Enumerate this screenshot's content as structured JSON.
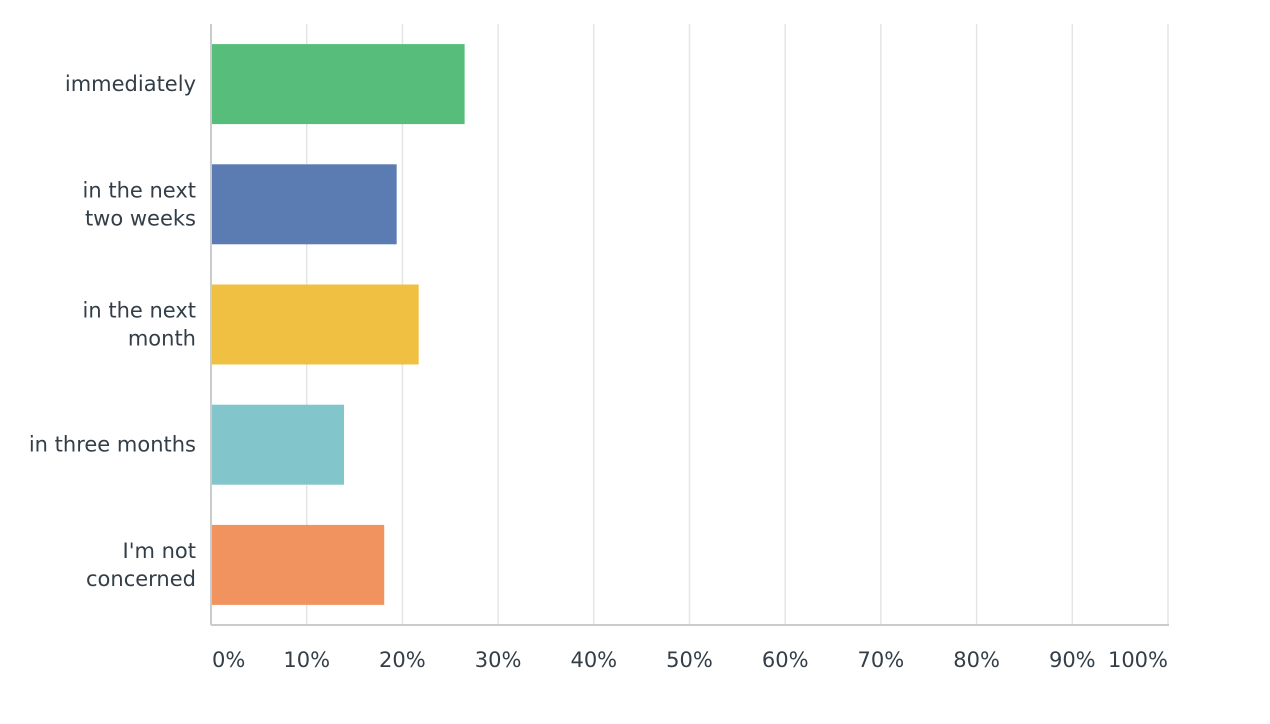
{
  "chart_data": {
    "type": "bar",
    "orientation": "horizontal",
    "categories": [
      [
        "immediately"
      ],
      [
        "in the next",
        "two weeks"
      ],
      [
        "in the next",
        "month"
      ],
      [
        "in three months"
      ],
      [
        "I'm not",
        "concerned"
      ]
    ],
    "values": [
      26.5,
      19.4,
      21.7,
      13.9,
      18.1
    ],
    "colors": [
      "#56be7a",
      "#5a7cb2",
      "#f0c043",
      "#82c6cc",
      "#f0935e"
    ],
    "xlim": [
      0,
      100
    ],
    "xticks": [
      "0%",
      "10%",
      "20%",
      "30%",
      "40%",
      "50%",
      "60%",
      "70%",
      "80%",
      "90%",
      "100%"
    ],
    "grid": true,
    "title": "",
    "xlabel": "",
    "ylabel": ""
  }
}
